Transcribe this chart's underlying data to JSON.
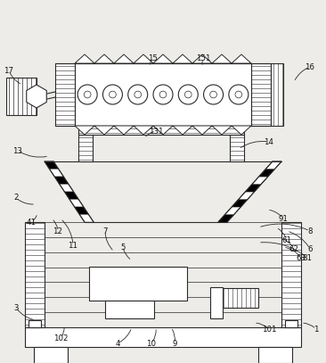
{
  "bg_color": "#eeece8",
  "line_color": "#2a2a2a",
  "figsize": [
    3.66,
    4.07
  ],
  "dpi": 100
}
